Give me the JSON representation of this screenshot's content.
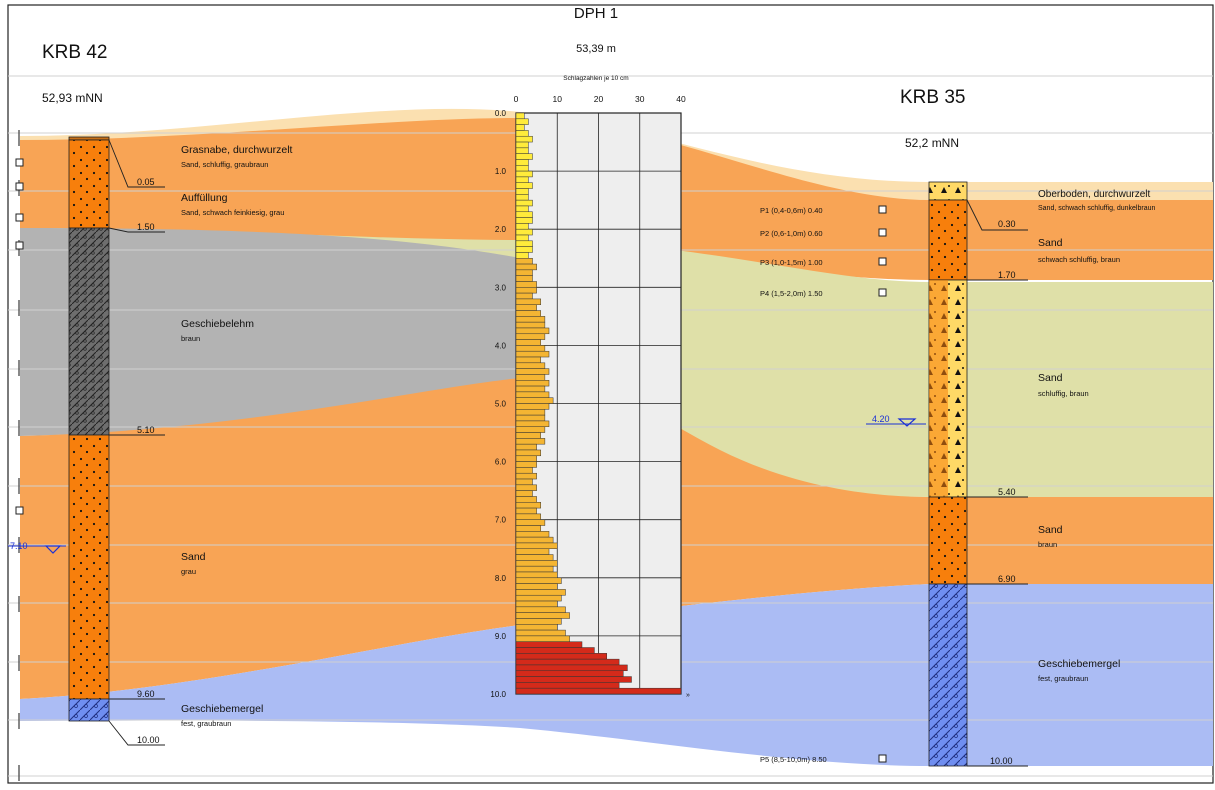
{
  "left_bore": {
    "name": "KRB 42",
    "elevation": "52,93 mNN",
    "depth_marks": [
      "0.05",
      "1.50",
      "5.10",
      "9.60",
      "10.00"
    ],
    "water_level": "7.10",
    "layers": [
      {
        "title": "Grasnabe, durchwurzelt",
        "desc": "Sand, schluffig, graubraun"
      },
      {
        "title": "Auffüllung",
        "desc": "Sand, schwach feinkiesig, grau"
      },
      {
        "title": "Geschiebelehm",
        "desc": "braun"
      },
      {
        "title": "Sand",
        "desc": "grau"
      },
      {
        "title": "Geschiebemergel",
        "desc": "fest, graubraun"
      }
    ]
  },
  "center_probe": {
    "name": "DPH 1",
    "elevation": "53,39 m",
    "axis_label": "Schlagzahlen je 10 cm",
    "x_ticks": [
      "0",
      "10",
      "20",
      "30",
      "40"
    ],
    "depth_ticks": [
      "0.0",
      "1.0",
      "2.0",
      "3.0",
      "4.0",
      "5.0",
      "6.0",
      "7.0",
      "8.0",
      "9.0",
      "10.0"
    ],
    "overflow_marker": "»"
  },
  "right_bore": {
    "name": "KRB 35",
    "elevation": "52,2 mNN",
    "depth_marks": [
      "0.30",
      "1.70",
      "5.40",
      "6.90",
      "10.00"
    ],
    "water_level": "4.20",
    "layers": [
      {
        "title": "Oberboden, durchwurzelt",
        "desc": "Sand, schwach schluffig, dunkelbraun"
      },
      {
        "title": "Sand",
        "desc": "schwach schluffig, braun"
      },
      {
        "title": "Sand",
        "desc": "schluffig, braun"
      },
      {
        "title": "Sand",
        "desc": "braun"
      },
      {
        "title": "Geschiebemergel",
        "desc": "fest, graubraun"
      }
    ],
    "samples": [
      "P1 (0,4-0,6m) 0.40",
      "P2 (0,6-1,0m) 0.60",
      "P3 (1,0-1,5m) 1.00",
      "P4 (1,5-2,0m) 1.50",
      "P5 (8,5-10,0m) 8.50"
    ]
  },
  "colors": {
    "sand_orange": "#f8a455",
    "loam_grey": "#b3b3b3",
    "silty_sand": "#dfe0a8",
    "topsoil": "#fbe0b0",
    "marl_blue": "#abbcf4",
    "column_orange": "#f77f0c",
    "water_blue": "#1a2fd6"
  },
  "chart_data": {
    "type": "bar",
    "title": "DPH 1",
    "xlabel": "Schlagzahlen je 10 cm",
    "ylabel": "",
    "xlim": [
      0,
      40
    ],
    "depth_range": [
      0.0,
      10.0
    ],
    "orientation": "horizontal",
    "depth_step": 0.1,
    "values": [
      2,
      3,
      2,
      3,
      4,
      3,
      3,
      4,
      3,
      3,
      4,
      3,
      4,
      3,
      3,
      4,
      3,
      4,
      4,
      3,
      4,
      3,
      4,
      4,
      3,
      4,
      5,
      4,
      4,
      5,
      5,
      4,
      6,
      5,
      6,
      7,
      7,
      8,
      7,
      6,
      7,
      8,
      6,
      7,
      8,
      7,
      8,
      7,
      8,
      9,
      8,
      7,
      7,
      8,
      7,
      6,
      7,
      5,
      6,
      5,
      5,
      4,
      5,
      4,
      5,
      4,
      5,
      6,
      5,
      6,
      7,
      6,
      8,
      9,
      10,
      8,
      9,
      10,
      9,
      10,
      11,
      10,
      12,
      11,
      10,
      12,
      13,
      11,
      10,
      12,
      13,
      16,
      19,
      22,
      25,
      27,
      26,
      28,
      25,
      40
    ]
  }
}
